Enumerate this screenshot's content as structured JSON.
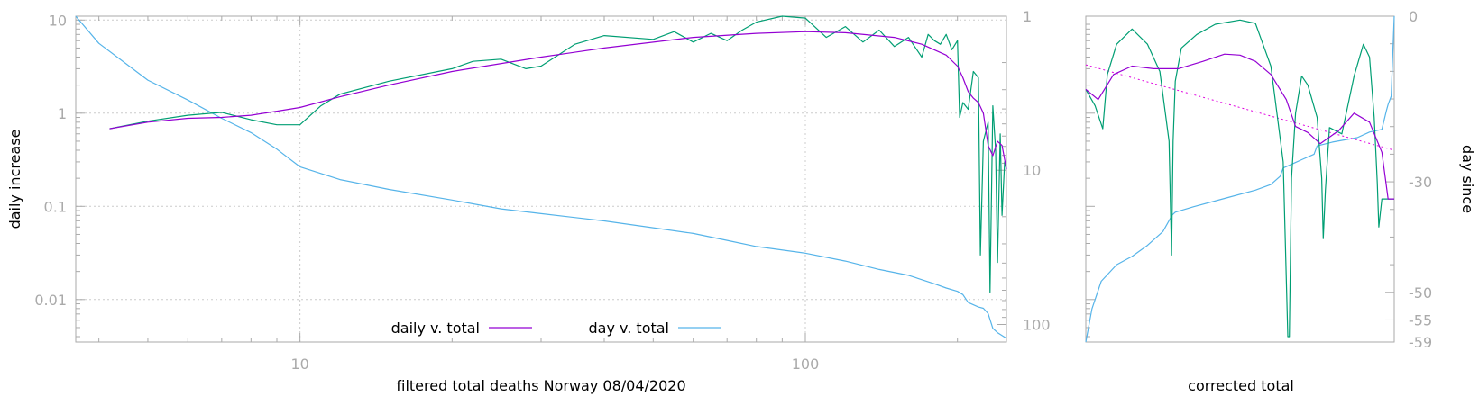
{
  "chart_data": [
    {
      "type": "line",
      "xlabel": "filtered total deaths Norway 08/04/2020",
      "ylabel": "daily increase",
      "y2label": "",
      "x_scale": "log",
      "y_scale": "log",
      "y2_scale": "log-reversed",
      "xlim": [
        3.6,
        250
      ],
      "ylim": [
        0.0035,
        11
      ],
      "y2lim": [
        1,
        130
      ],
      "x_ticks": [
        10,
        100
      ],
      "x_tick_labels": [
        "10",
        "100"
      ],
      "y_ticks": [
        0.01,
        0.1,
        1,
        10
      ],
      "y_tick_labels": [
        "0.01",
        "0.1",
        "1",
        "10"
      ],
      "y2_ticks": [
        1,
        10,
        100
      ],
      "y2_tick_labels": [
        "1",
        "10",
        "100"
      ],
      "grid": true,
      "legend_position": "bottom-center",
      "series": [
        {
          "name": "daily v. total",
          "color": "#9400d3",
          "axis": "y",
          "x": [
            4.2,
            5,
            6,
            7,
            8,
            9,
            10,
            12,
            15,
            20,
            30,
            40,
            60,
            80,
            100,
            120,
            150,
            170,
            190,
            200,
            205,
            210,
            215,
            220,
            225,
            230,
            235,
            240,
            245,
            250
          ],
          "y": [
            0.68,
            0.8,
            0.88,
            0.9,
            0.95,
            1.05,
            1.15,
            1.5,
            2.0,
            2.8,
            4.0,
            5.0,
            6.5,
            7.2,
            7.5,
            7.3,
            6.5,
            5.5,
            4.2,
            3.2,
            2.4,
            1.7,
            1.45,
            1.3,
            1.0,
            0.45,
            0.35,
            0.5,
            0.45,
            0.25
          ]
        },
        {
          "name": "",
          "color": "#009e73",
          "axis": "y",
          "x": [
            4.2,
            5,
            6,
            7,
            8,
            9,
            10,
            11,
            12,
            15,
            20,
            22,
            25,
            28,
            30,
            35,
            40,
            50,
            55,
            60,
            65,
            70,
            75,
            80,
            90,
            100,
            110,
            120,
            130,
            140,
            150,
            160,
            170,
            175,
            180,
            185,
            190,
            195,
            200,
            202,
            205,
            210,
            215,
            220,
            222,
            225,
            230,
            232,
            235,
            238,
            240,
            243,
            245,
            248,
            250
          ],
          "y": [
            0.68,
            0.82,
            0.95,
            1.02,
            0.85,
            0.75,
            0.75,
            1.2,
            1.6,
            2.2,
            3.0,
            3.6,
            3.8,
            3.0,
            3.2,
            5.5,
            6.8,
            6.2,
            7.5,
            5.8,
            7.2,
            6.0,
            7.8,
            9.5,
            11,
            10.5,
            6.5,
            8.5,
            5.8,
            7.8,
            5.2,
            6.5,
            4.0,
            7.0,
            6.0,
            5.5,
            7.0,
            4.8,
            6.0,
            0.9,
            1.3,
            1.1,
            2.8,
            2.4,
            0.03,
            0.5,
            0.8,
            0.012,
            1.2,
            0.4,
            0.025,
            0.6,
            0.08,
            0.3,
            0.25
          ]
        },
        {
          "name": "day v. total",
          "color": "#56b4e9",
          "axis": "y2",
          "x": [
            3.6,
            4,
            5,
            6,
            7,
            8,
            9,
            10,
            12,
            15,
            20,
            25,
            30,
            40,
            50,
            60,
            70,
            80,
            100,
            120,
            140,
            160,
            180,
            190,
            200,
            205,
            210,
            220,
            225,
            230,
            235,
            240,
            250
          ],
          "y2": [
            1.0,
            1.5,
            2.6,
            3.5,
            4.6,
            5.7,
            7.3,
            9.5,
            11.5,
            13.3,
            15.6,
            17.8,
            19.1,
            21.3,
            23.6,
            25.7,
            28.5,
            31.2,
            34.5,
            38.8,
            44.0,
            48.0,
            54.5,
            58.0,
            61.0,
            64.0,
            72.0,
            77.0,
            78.5,
            85.0,
            106,
            113,
            123
          ]
        }
      ]
    },
    {
      "type": "line",
      "xlabel": "corrected total",
      "ylabel": "",
      "y2label": "day since",
      "x_scale": "linear",
      "y_scale": "log",
      "y2_scale": "linear",
      "xlim": [
        0,
        1
      ],
      "ylim": [
        0.0035,
        11
      ],
      "y2lim": [
        -59,
        0
      ],
      "y2_ticks": [
        0,
        -30,
        -50,
        -55,
        -59
      ],
      "y2_tick_labels": [
        "0",
        "-30",
        "-50",
        "-55",
        "-59"
      ],
      "grid": false,
      "series": [
        {
          "name": "",
          "color": "#9400d3",
          "axis": "y",
          "x": [
            0,
            0.04,
            0.09,
            0.15,
            0.22,
            0.3,
            0.38,
            0.45,
            0.5,
            0.55,
            0.6,
            0.65,
            0.68,
            0.72,
            0.76,
            0.82,
            0.87,
            0.92,
            0.96,
            0.98,
            1.0
          ],
          "y": [
            1.8,
            1.4,
            2.6,
            3.2,
            3.0,
            3.0,
            3.6,
            4.3,
            4.2,
            3.6,
            2.6,
            1.4,
            0.72,
            0.62,
            0.47,
            0.65,
            1.0,
            0.8,
            0.38,
            0.12,
            0.12
          ]
        },
        {
          "name": "",
          "color": "#009e73",
          "axis": "y",
          "x": [
            0,
            0.03,
            0.055,
            0.07,
            0.1,
            0.15,
            0.2,
            0.24,
            0.27,
            0.278,
            0.283,
            0.29,
            0.31,
            0.36,
            0.42,
            0.5,
            0.55,
            0.6,
            0.64,
            0.655,
            0.66,
            0.667,
            0.68,
            0.7,
            0.72,
            0.75,
            0.765,
            0.77,
            0.777,
            0.79,
            0.83,
            0.87,
            0.9,
            0.92,
            0.935,
            0.945,
            0.95,
            0.96,
            0.98,
            1.0
          ],
          "y": [
            1.8,
            1.2,
            0.68,
            2.6,
            5.5,
            8.0,
            5.5,
            2.8,
            0.5,
            0.03,
            0.5,
            2.2,
            5.0,
            7.0,
            9.0,
            10.0,
            9.2,
            3.2,
            0.3,
            0.004,
            0.004,
            0.2,
            1.0,
            2.5,
            2.0,
            0.9,
            0.2,
            0.045,
            0.15,
            0.7,
            0.6,
            2.5,
            5.5,
            4.0,
            0.9,
            0.18,
            0.06,
            0.12,
            0.12,
            0.12
          ]
        },
        {
          "name": "",
          "color": "#56b4e9",
          "axis": "y2",
          "x": [
            0,
            0.02,
            0.05,
            0.1,
            0.15,
            0.2,
            0.25,
            0.28,
            0.29,
            0.35,
            0.45,
            0.55,
            0.6,
            0.63,
            0.64,
            0.66,
            0.68,
            0.7,
            0.74,
            0.75,
            0.8,
            0.88,
            0.92,
            0.96,
            0.975,
            0.98,
            0.99,
            1.0
          ],
          "y2": [
            -59,
            -53,
            -48,
            -45,
            -43.5,
            -41.5,
            -39,
            -36,
            -35.5,
            -34.5,
            -33,
            -31.5,
            -30.5,
            -29,
            -27.5,
            -27,
            -26.5,
            -26,
            -25,
            -23.5,
            -22.8,
            -22,
            -21,
            -20.5,
            -17,
            -16,
            -14.5,
            0
          ]
        },
        {
          "name": "",
          "color": "#e000e0",
          "axis": "y",
          "style": "dotted",
          "x": [
            0,
            1
          ],
          "y": [
            3.3,
            0.4
          ]
        }
      ]
    }
  ],
  "legend": [
    {
      "label": "daily v. total",
      "color": "#9400d3"
    },
    {
      "label": "day v. total",
      "color": "#56b4e9"
    }
  ]
}
